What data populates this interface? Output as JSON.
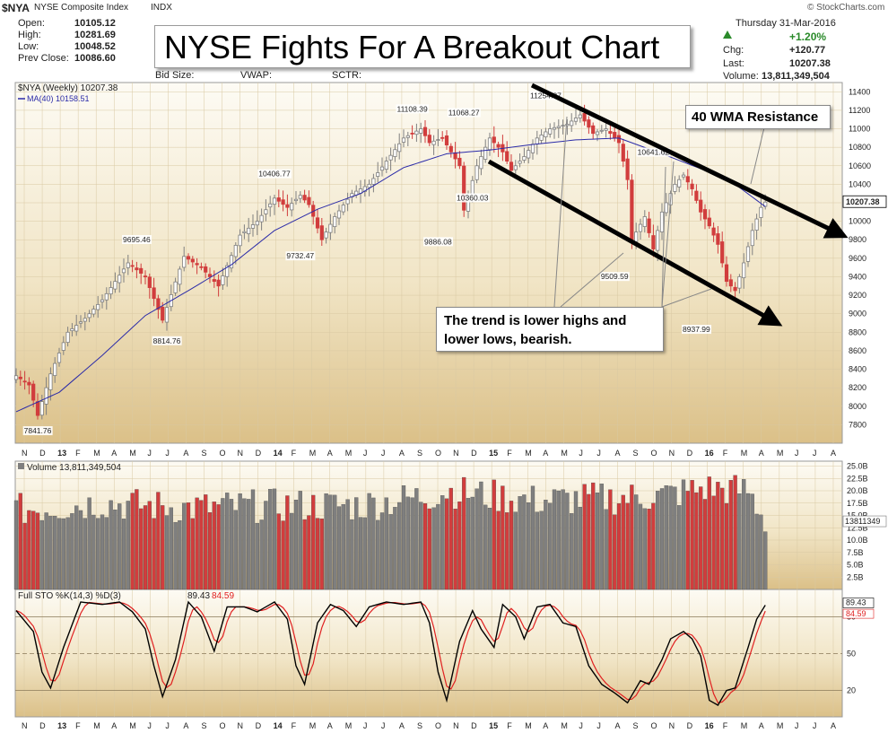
{
  "header": {
    "symbol": "$NYA",
    "name": "NYSE Composite Index",
    "exchange": "INDX",
    "source": "© StockCharts.com",
    "date": "Thursday  31-Mar-2016",
    "open_label": "Open:",
    "open": "10105.12",
    "high_label": "High:",
    "high": "10281.69",
    "low_label": "Low:",
    "low": "10048.52",
    "prevclose_label": "Prev Close:",
    "prevclose": "10086.60",
    "bidsize_label": "Bid Size:",
    "vwap_label": "VWAP:",
    "sctr_label": "SCTR:",
    "chgpct": "+1.20%",
    "chg_label": "Chg:",
    "chg": "+120.77",
    "last_label": "Last:",
    "last": "10207.38",
    "volume_label": "Volume:",
    "volume": "13,811,349,504"
  },
  "title": "NYSE Fights For A Breakout Chart",
  "callouts": {
    "resistance": "40 WMA Resistance",
    "trend_line1": "The trend is lower highs and",
    "trend_line2": "lower lows, bearish."
  },
  "colors": {
    "up": "#7f7f7f",
    "down": "#d13d3d",
    "ma": "#2b2ba8",
    "stoch_k": "#000000",
    "stoch_d": "#e02020",
    "chgpct": "#2a8a2a"
  },
  "chart_data": [
    {
      "type": "candlestick",
      "legend_symbol": "$NYA (Weekly) 10207.38",
      "legend_ma": "MA(40) 10158.51",
      "ylim": [
        7600,
        11500
      ],
      "y_ticks": [
        7800,
        8000,
        8200,
        8400,
        8600,
        8800,
        9000,
        9200,
        9400,
        9600,
        9800,
        10000,
        10200,
        10400,
        10600,
        10800,
        11000,
        11200,
        11400
      ],
      "last_value_label": "10207.38",
      "x_month_labels": [
        "N",
        "D",
        "13",
        "F",
        "M",
        "A",
        "M",
        "J",
        "J",
        "A",
        "S",
        "O",
        "N",
        "D",
        "14",
        "F",
        "M",
        "A",
        "M",
        "J",
        "J",
        "A",
        "S",
        "O",
        "N",
        "D",
        "15",
        "F",
        "M",
        "A",
        "M",
        "J",
        "J",
        "A",
        "S",
        "O",
        "N",
        "D",
        "16",
        "F",
        "M",
        "A",
        "M",
        "J",
        "J",
        "A"
      ],
      "x_bold_labels": [
        "13",
        "14",
        "15",
        "16"
      ],
      "close_anchors": [
        {
          "w": 0,
          "c": 8330
        },
        {
          "w": 3,
          "c": 8230
        },
        {
          "w": 5,
          "c": 7900
        },
        {
          "w": 8,
          "c": 8350
        },
        {
          "w": 12,
          "c": 8800
        },
        {
          "w": 16,
          "c": 8950
        },
        {
          "w": 20,
          "c": 9150
        },
        {
          "w": 26,
          "c": 9550
        },
        {
          "w": 30,
          "c": 9400
        },
        {
          "w": 34,
          "c": 8930
        },
        {
          "w": 39,
          "c": 9620
        },
        {
          "w": 43,
          "c": 9500
        },
        {
          "w": 47,
          "c": 9300
        },
        {
          "w": 52,
          "c": 9850
        },
        {
          "w": 56,
          "c": 10000
        },
        {
          "w": 60,
          "c": 10250
        },
        {
          "w": 63,
          "c": 10150
        },
        {
          "w": 66,
          "c": 10280
        },
        {
          "w": 68,
          "c": 10180
        },
        {
          "w": 71,
          "c": 9800
        },
        {
          "w": 74,
          "c": 10050
        },
        {
          "w": 78,
          "c": 10300
        },
        {
          "w": 82,
          "c": 10400
        },
        {
          "w": 86,
          "c": 10650
        },
        {
          "w": 90,
          "c": 10900
        },
        {
          "w": 94,
          "c": 11000
        },
        {
          "w": 96,
          "c": 10850
        },
        {
          "w": 99,
          "c": 10900
        },
        {
          "w": 103,
          "c": 10600
        },
        {
          "w": 104,
          "c": 10120
        },
        {
          "w": 107,
          "c": 10600
        },
        {
          "w": 110,
          "c": 10900
        },
        {
          "w": 113,
          "c": 10750
        },
        {
          "w": 115,
          "c": 10550
        },
        {
          "w": 118,
          "c": 10700
        },
        {
          "w": 121,
          "c": 10900
        },
        {
          "w": 124,
          "c": 11000
        },
        {
          "w": 128,
          "c": 11050
        },
        {
          "w": 131,
          "c": 11150
        },
        {
          "w": 134,
          "c": 10950
        },
        {
          "w": 137,
          "c": 11000
        },
        {
          "w": 140,
          "c": 10850
        },
        {
          "w": 142,
          "c": 10450
        },
        {
          "w": 143,
          "c": 9800
        },
        {
          "w": 146,
          "c": 10050
        },
        {
          "w": 148,
          "c": 9700
        },
        {
          "w": 150,
          "c": 10100
        },
        {
          "w": 153,
          "c": 10400
        },
        {
          "w": 155,
          "c": 10500
        },
        {
          "w": 157,
          "c": 10350
        },
        {
          "w": 159,
          "c": 10100
        },
        {
          "w": 161,
          "c": 9950
        },
        {
          "w": 163,
          "c": 9750
        },
        {
          "w": 165,
          "c": 9350
        },
        {
          "w": 167,
          "c": 9250
        },
        {
          "w": 169,
          "c": 9550
        },
        {
          "w": 171,
          "c": 9900
        },
        {
          "w": 173,
          "c": 10150
        },
        {
          "w": 174,
          "c": 10207
        }
      ],
      "ma_anchors": [
        {
          "w": 0,
          "c": 7940
        },
        {
          "w": 10,
          "c": 8150
        },
        {
          "w": 20,
          "c": 8550
        },
        {
          "w": 30,
          "c": 8980
        },
        {
          "w": 40,
          "c": 9250
        },
        {
          "w": 50,
          "c": 9530
        },
        {
          "w": 60,
          "c": 9900
        },
        {
          "w": 70,
          "c": 10130
        },
        {
          "w": 80,
          "c": 10300
        },
        {
          "w": 90,
          "c": 10580
        },
        {
          "w": 100,
          "c": 10730
        },
        {
          "w": 110,
          "c": 10770
        },
        {
          "w": 120,
          "c": 10830
        },
        {
          "w": 130,
          "c": 10880
        },
        {
          "w": 140,
          "c": 10900
        },
        {
          "w": 150,
          "c": 10730
        },
        {
          "w": 160,
          "c": 10550
        },
        {
          "w": 167,
          "c": 10400
        },
        {
          "w": 174,
          "c": 10158
        }
      ],
      "price_labels": [
        {
          "text": "7841.76",
          "w": 5,
          "v": 7841.76,
          "pos": "below"
        },
        {
          "text": "8814.76",
          "w": 35,
          "v": 8814.76,
          "pos": "below"
        },
        {
          "text": "9695.46",
          "w": 28,
          "v": 9695.46,
          "pos": "above"
        },
        {
          "text": "9732.47",
          "w": 66,
          "v": 9732.47,
          "pos": "below"
        },
        {
          "text": "10406.77",
          "w": 60,
          "v": 10406.77,
          "pos": "above"
        },
        {
          "text": "11108.39",
          "w": 92,
          "v": 11108.39,
          "pos": "above"
        },
        {
          "text": "9886.08",
          "w": 98,
          "v": 9886.08,
          "pos": "below"
        },
        {
          "text": "11068.27",
          "w": 104,
          "v": 11068.27,
          "pos": "above"
        },
        {
          "text": "10360.03",
          "w": 106,
          "v": 10360.03,
          "pos": "below"
        },
        {
          "text": "11254.87",
          "w": 123,
          "v": 11254.87,
          "pos": "above"
        },
        {
          "text": "9509.59",
          "w": 139,
          "v": 9509.59,
          "pos": "below"
        },
        {
          "text": "10641.62",
          "w": 148,
          "v": 10641.62,
          "pos": "above"
        },
        {
          "text": "8937.99",
          "w": 158,
          "v": 8937.99,
          "pos": "below"
        }
      ]
    },
    {
      "type": "bar",
      "legend": "Volume 13,811,349,504",
      "ylim": [
        0,
        26
      ],
      "y_ticks_label": [
        "2.5B",
        "5.0B",
        "7.5B",
        "10.0B",
        "12.5B",
        "15.0B",
        "17.5B",
        "20.0B",
        "22.5B",
        "25.0B"
      ],
      "y_ticks": [
        2.5,
        5,
        7.5,
        10,
        12.5,
        15,
        17.5,
        20,
        22.5,
        25
      ],
      "last_value_label": "13811349",
      "last_value": 13.81,
      "vol_anchors": [
        {
          "w": 0,
          "v": 16
        },
        {
          "w": 20,
          "v": 17.5
        },
        {
          "w": 40,
          "v": 16.5
        },
        {
          "w": 60,
          "v": 17
        },
        {
          "w": 80,
          "v": 17
        },
        {
          "w": 96,
          "v": 19
        },
        {
          "w": 100,
          "v": 20
        },
        {
          "w": 120,
          "v": 18
        },
        {
          "w": 140,
          "v": 18.5
        },
        {
          "w": 150,
          "v": 19
        },
        {
          "w": 160,
          "v": 20.5
        },
        {
          "w": 170,
          "v": 20
        },
        {
          "w": 174,
          "v": 14
        }
      ]
    },
    {
      "type": "line",
      "legend": "Full STO %K(14,3) %D(3)",
      "legend_k": "89.43",
      "legend_d": "84.59",
      "ylim": [
        0,
        100
      ],
      "y_ticks": [
        20,
        50,
        80
      ],
      "last_k": 89.43,
      "last_d": 84.59,
      "k_anchors": [
        {
          "w": 0,
          "v": 85
        },
        {
          "w": 4,
          "v": 68
        },
        {
          "w": 6,
          "v": 35
        },
        {
          "w": 8,
          "v": 22
        },
        {
          "w": 11,
          "v": 55
        },
        {
          "w": 15,
          "v": 92
        },
        {
          "w": 20,
          "v": 90
        },
        {
          "w": 24,
          "v": 92
        },
        {
          "w": 27,
          "v": 84
        },
        {
          "w": 30,
          "v": 70
        },
        {
          "w": 32,
          "v": 40
        },
        {
          "w": 34,
          "v": 15
        },
        {
          "w": 37,
          "v": 45
        },
        {
          "w": 40,
          "v": 92
        },
        {
          "w": 43,
          "v": 80
        },
        {
          "w": 46,
          "v": 52
        },
        {
          "w": 49,
          "v": 88
        },
        {
          "w": 53,
          "v": 88
        },
        {
          "w": 56,
          "v": 84
        },
        {
          "w": 60,
          "v": 92
        },
        {
          "w": 63,
          "v": 78
        },
        {
          "w": 65,
          "v": 40
        },
        {
          "w": 67,
          "v": 25
        },
        {
          "w": 70,
          "v": 75
        },
        {
          "w": 73,
          "v": 90
        },
        {
          "w": 76,
          "v": 85
        },
        {
          "w": 79,
          "v": 72
        },
        {
          "w": 82,
          "v": 88
        },
        {
          "w": 86,
          "v": 92
        },
        {
          "w": 90,
          "v": 90
        },
        {
          "w": 94,
          "v": 92
        },
        {
          "w": 96,
          "v": 75
        },
        {
          "w": 98,
          "v": 35
        },
        {
          "w": 100,
          "v": 12
        },
        {
          "w": 103,
          "v": 60
        },
        {
          "w": 106,
          "v": 85
        },
        {
          "w": 108,
          "v": 70
        },
        {
          "w": 111,
          "v": 55
        },
        {
          "w": 113,
          "v": 90
        },
        {
          "w": 116,
          "v": 80
        },
        {
          "w": 118,
          "v": 62
        },
        {
          "w": 121,
          "v": 88
        },
        {
          "w": 124,
          "v": 90
        },
        {
          "w": 127,
          "v": 75
        },
        {
          "w": 130,
          "v": 72
        },
        {
          "w": 133,
          "v": 40
        },
        {
          "w": 136,
          "v": 25
        },
        {
          "w": 139,
          "v": 18
        },
        {
          "w": 142,
          "v": 10
        },
        {
          "w": 145,
          "v": 28
        },
        {
          "w": 147,
          "v": 25
        },
        {
          "w": 150,
          "v": 45
        },
        {
          "w": 152,
          "v": 62
        },
        {
          "w": 155,
          "v": 68
        },
        {
          "w": 157,
          "v": 62
        },
        {
          "w": 159,
          "v": 48
        },
        {
          "w": 161,
          "v": 12
        },
        {
          "w": 163,
          "v": 8
        },
        {
          "w": 165,
          "v": 20
        },
        {
          "w": 167,
          "v": 22
        },
        {
          "w": 170,
          "v": 55
        },
        {
          "w": 172,
          "v": 78
        },
        {
          "w": 174,
          "v": 89.43
        }
      ]
    }
  ]
}
